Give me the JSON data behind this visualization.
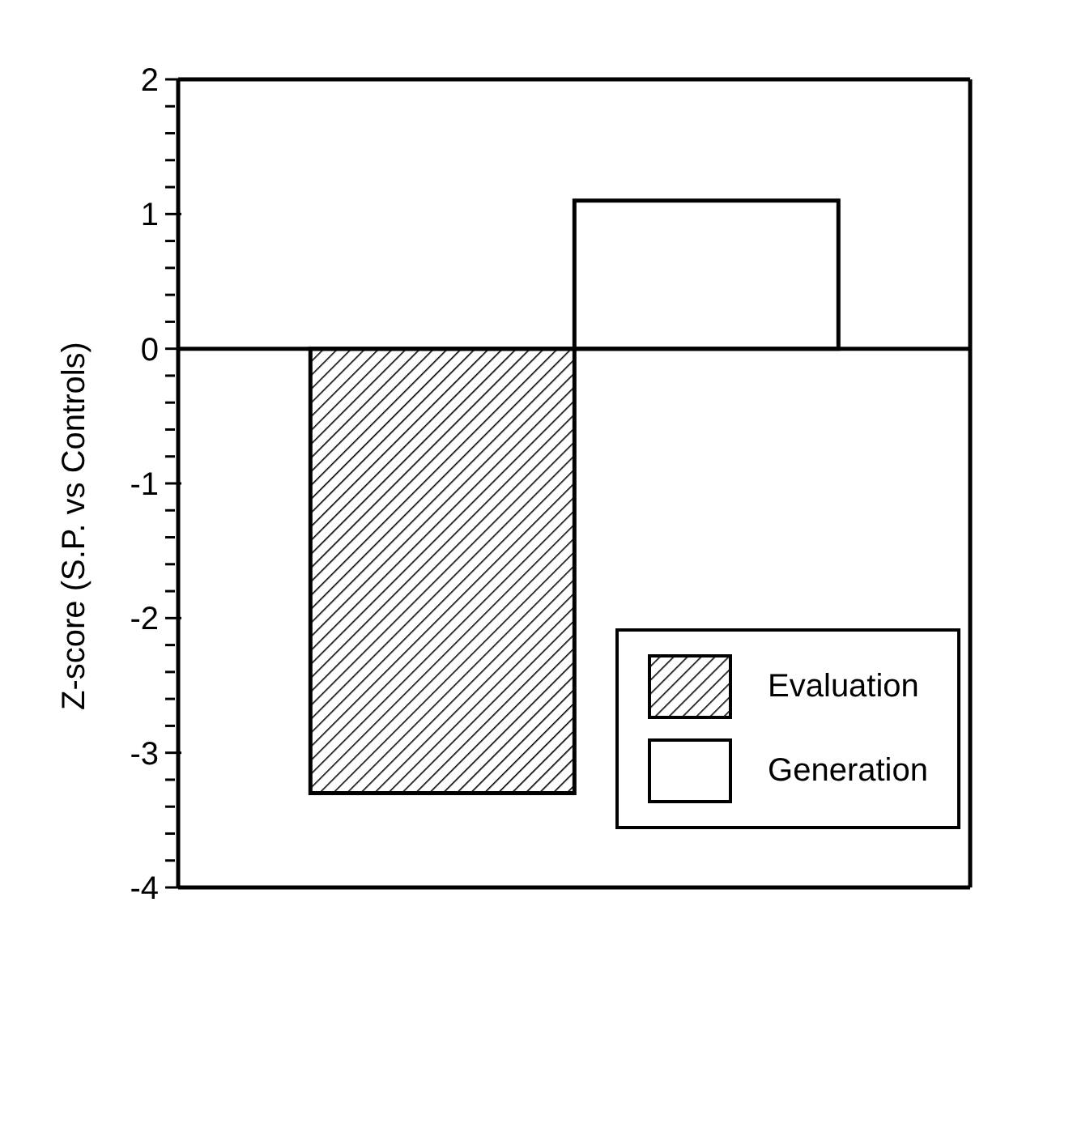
{
  "chart_data": {
    "type": "bar",
    "ylabel": "Z-score (S.P. vs Controls)",
    "categories": [
      null
    ],
    "series": [
      {
        "name": "Evaluation",
        "color": "#000000",
        "values": [
          -3.3
        ]
      },
      {
        "name": "Generation",
        "values": [
          1.1
        ]
      }
    ],
    "ylim": [
      -4,
      2
    ],
    "yticks": [
      -4,
      {
        "value": -3.8,
        "label": null
      },
      {
        "value": -3.6,
        "label": null
      },
      {
        "value": -3.4,
        "label": null
      },
      {
        "value": -3.2,
        "label": null
      },
      -3,
      {
        "value": -2.8,
        "label": null
      },
      {
        "value": -2.6,
        "label": null
      },
      {
        "value": -2.4,
        "label": null
      },
      {
        "value": -2.2,
        "label": null
      },
      -2,
      {
        "value": -1.8,
        "label": null
      },
      {
        "value": -1.6,
        "label": null
      },
      {
        "value": -1.4,
        "label": null
      },
      {
        "value": -1.2,
        "label": null
      },
      -1,
      {
        "value": -0.8,
        "label": null
      },
      {
        "value": -0.6,
        "label": null
      },
      {
        "value": -0.4,
        "label": null
      },
      {
        "value": -0.2,
        "label": null
      },
      0,
      {
        "value": 0.2,
        "label": null
      },
      {
        "value": 0.4,
        "label": null
      },
      {
        "value": 0.6,
        "label": null
      },
      {
        "value": 0.8,
        "label": null
      },
      1,
      {
        "value": 1.2,
        "label": null
      },
      {
        "value": 1.4,
        "label": null
      },
      {
        "value": 1.6,
        "label": null
      },
      {
        "value": 1.8,
        "label": null
      },
      2
    ],
    "ref_lines": [
      {
        "axis": "y",
        "value": 0,
        "color": "#000000"
      }
    ],
    "grid": false,
    "legend": "right",
    "tick_labels": "y"
  }
}
